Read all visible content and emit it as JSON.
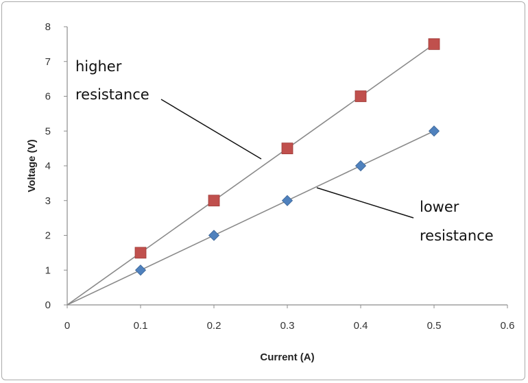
{
  "chart_data": {
    "type": "scatter",
    "title": "",
    "xlabel": "Current (A)",
    "ylabel": "Voltage (V)",
    "xlim": [
      0,
      0.6
    ],
    "ylim": [
      0,
      8
    ],
    "x_ticks": [
      "0",
      "0.1",
      "0.2",
      "0.3",
      "0.4",
      "0.5",
      "0.6"
    ],
    "y_ticks": [
      "0",
      "1",
      "2",
      "3",
      "4",
      "5",
      "6",
      "7",
      "8"
    ],
    "grid": false,
    "series": [
      {
        "label": "higher resistance",
        "marker": "square",
        "color": "#c0504d",
        "x": [
          0.1,
          0.2,
          0.3,
          0.4,
          0.5
        ],
        "y": [
          1.5,
          3.0,
          4.5,
          6.0,
          7.5
        ],
        "trendline_through_origin": true
      },
      {
        "label": "lower resistance",
        "marker": "diamond",
        "color": "#4f81bd",
        "x": [
          0.1,
          0.2,
          0.3,
          0.4,
          0.5
        ],
        "y": [
          1.0,
          2.0,
          3.0,
          4.0,
          5.0
        ],
        "trendline_through_origin": true
      }
    ],
    "annotations": [
      {
        "lines": [
          "higher",
          "resistance"
        ],
        "points_to_series": 0
      },
      {
        "lines": [
          "lower",
          "resistance"
        ],
        "points_to_series": 1
      }
    ]
  }
}
